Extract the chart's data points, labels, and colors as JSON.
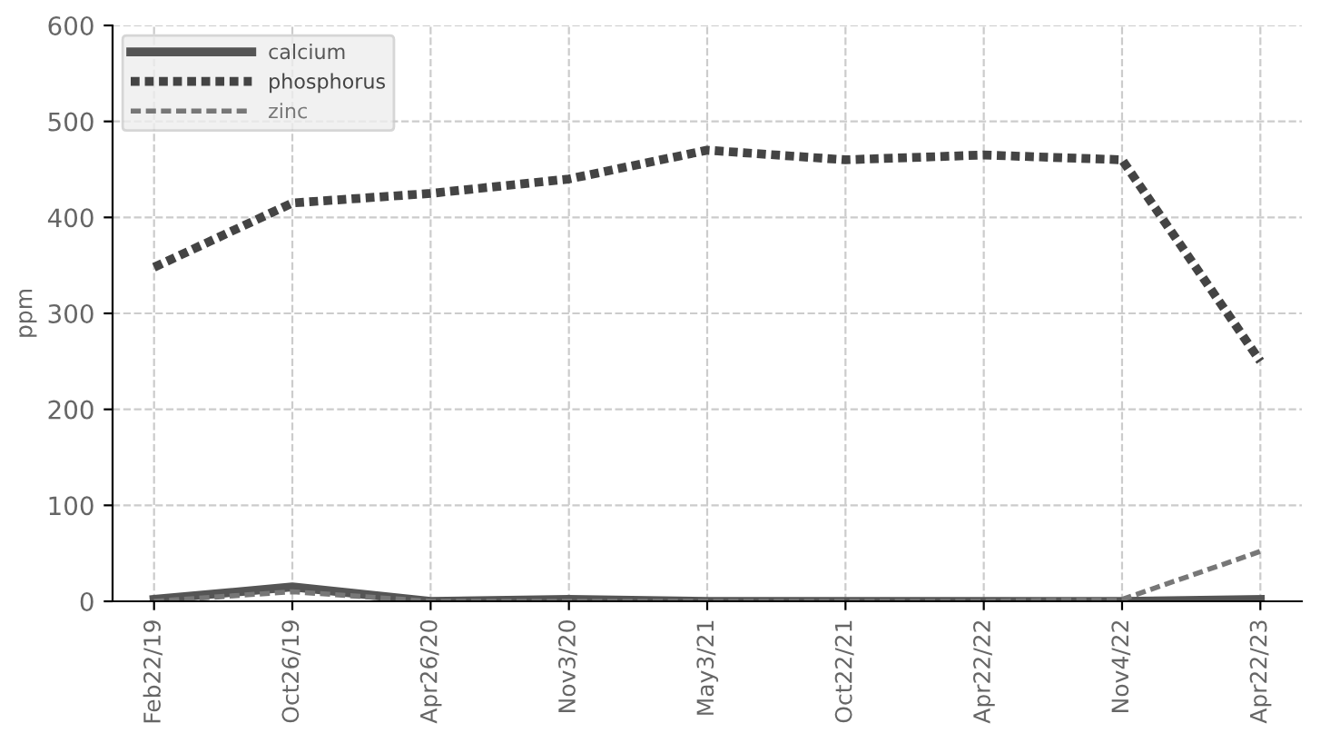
{
  "chart_data": {
    "type": "line",
    "ylabel": "ppm",
    "categories": [
      "Feb22/19",
      "Oct26/19",
      "Apr26/20",
      "Nov3/20",
      "May3/21",
      "Oct22/21",
      "Apr22/22",
      "Nov4/22",
      "Apr22/23"
    ],
    "series": [
      {
        "name": "calcium",
        "color": "#555555",
        "line_style": "solid",
        "values": [
          2,
          15,
          0,
          2,
          0,
          0,
          0,
          0,
          2
        ]
      },
      {
        "name": "phosphorus",
        "color": "#444444",
        "line_style": "dotted",
        "values": [
          348,
          415,
          425,
          440,
          470,
          460,
          465,
          460,
          250
        ]
      },
      {
        "name": "zinc",
        "color": "#777777",
        "line_style": "dashed",
        "values": [
          0,
          10,
          0,
          0,
          0,
          0,
          0,
          2,
          52
        ]
      }
    ],
    "ylim": [
      0,
      600
    ],
    "yticks": [
      0,
      100,
      200,
      300,
      400,
      500,
      600
    ],
    "grid": true,
    "legend": "top left",
    "marker": "none"
  }
}
